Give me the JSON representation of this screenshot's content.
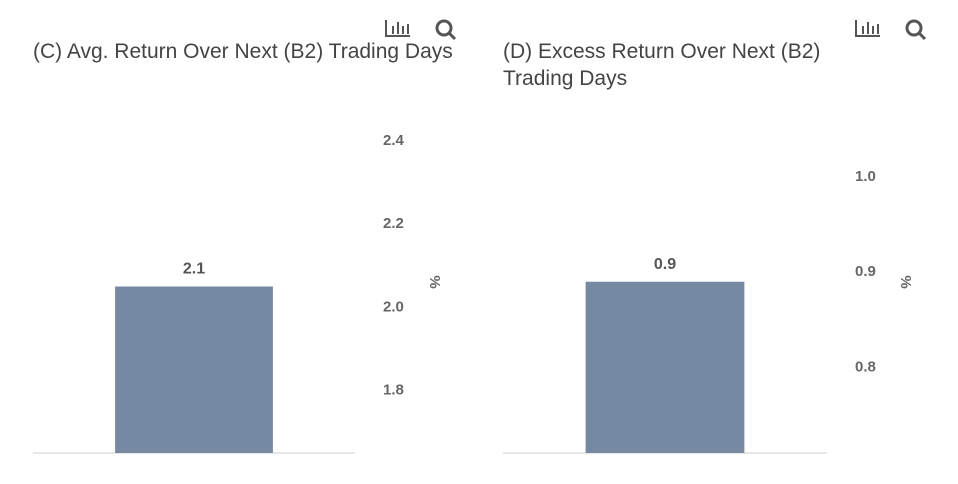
{
  "chart_data": [
    {
      "type": "bar",
      "title": "(C) Avg. Return Over Next (B2) Trading Days",
      "y_label": "%",
      "categories": [
        null
      ],
      "values": [
        2.05
      ],
      "value_labels": [
        "2.1"
      ],
      "color": "#7589a2",
      "ylim": [
        1.65,
        2.45
      ],
      "yticks": [
        1.8,
        2.0,
        2.2,
        2.4
      ]
    },
    {
      "type": "bar",
      "title": "(D) Excess Return Over Next (B2) Trading Days",
      "y_label": "%",
      "categories": [
        null
      ],
      "values": [
        0.89
      ],
      "value_labels": [
        "0.9"
      ],
      "color": "#7589a2",
      "ylim": [
        0.71,
        1.06
      ],
      "yticks": [
        0.8,
        0.9,
        1.0
      ]
    }
  ]
}
